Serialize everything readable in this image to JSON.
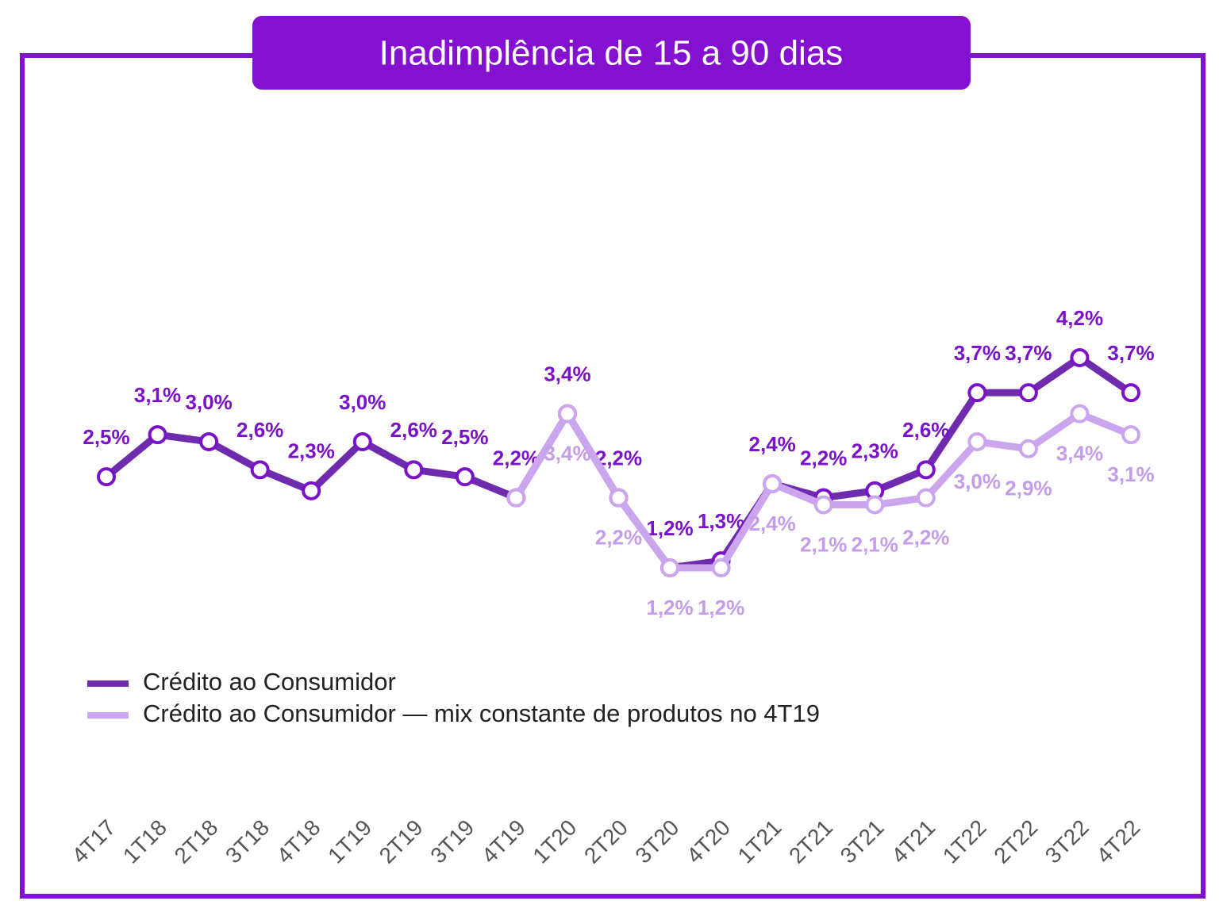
{
  "chart_data": {
    "type": "line",
    "title": "Inadimplência de 15 a 90 dias",
    "categories": [
      "4T17",
      "1T18",
      "2T18",
      "3T18",
      "4T18",
      "1T19",
      "2T19",
      "3T19",
      "4T19",
      "1T20",
      "2T20",
      "3T20",
      "4T20",
      "1T21",
      "2T21",
      "3T21",
      "4T21",
      "1T22",
      "2T22",
      "3T22",
      "4T22"
    ],
    "series": [
      {
        "name": "Crédito ao Consumidor",
        "color": "#6e2bad",
        "marker_color": "#7a12c8",
        "label_color": "#7a12c8",
        "values": [
          2.5,
          3.1,
          3.0,
          2.6,
          2.3,
          3.0,
          2.6,
          2.5,
          2.2,
          3.4,
          2.2,
          1.2,
          1.3,
          2.4,
          2.2,
          2.3,
          2.6,
          3.7,
          3.7,
          4.2,
          3.7
        ],
        "value_labels": [
          "2,5%",
          "3,1%",
          "3,0%",
          "2,6%",
          "2,3%",
          "3,0%",
          "2,6%",
          "2,5%",
          "2,2%",
          "3,4%",
          "2,2%",
          "1,2%",
          "1,3%",
          "2,4%",
          "2,2%",
          "2,3%",
          "2,6%",
          "3,7%",
          "3,7%",
          "4,2%",
          "3,7%"
        ]
      },
      {
        "name": "Crédito ao Consumidor — mix constante de produtos no 4T19",
        "color": "#cba6ee",
        "marker_color": "#cba6ee",
        "label_color": "#c39de9",
        "values": [
          null,
          null,
          null,
          null,
          null,
          null,
          null,
          null,
          2.2,
          3.4,
          2.2,
          1.2,
          1.2,
          2.4,
          2.1,
          2.1,
          2.2,
          3.0,
          2.9,
          3.4,
          3.1
        ],
        "value_labels": [
          null,
          null,
          null,
          null,
          null,
          null,
          null,
          null,
          null,
          "3,4%",
          "2,2%",
          "1,2%",
          "1,2%",
          "2,4%",
          "2,1%",
          "2,1%",
          "2,2%",
          "3,0%",
          "2,9%",
          "3,4%",
          "3,1%"
        ]
      }
    ]
  }
}
